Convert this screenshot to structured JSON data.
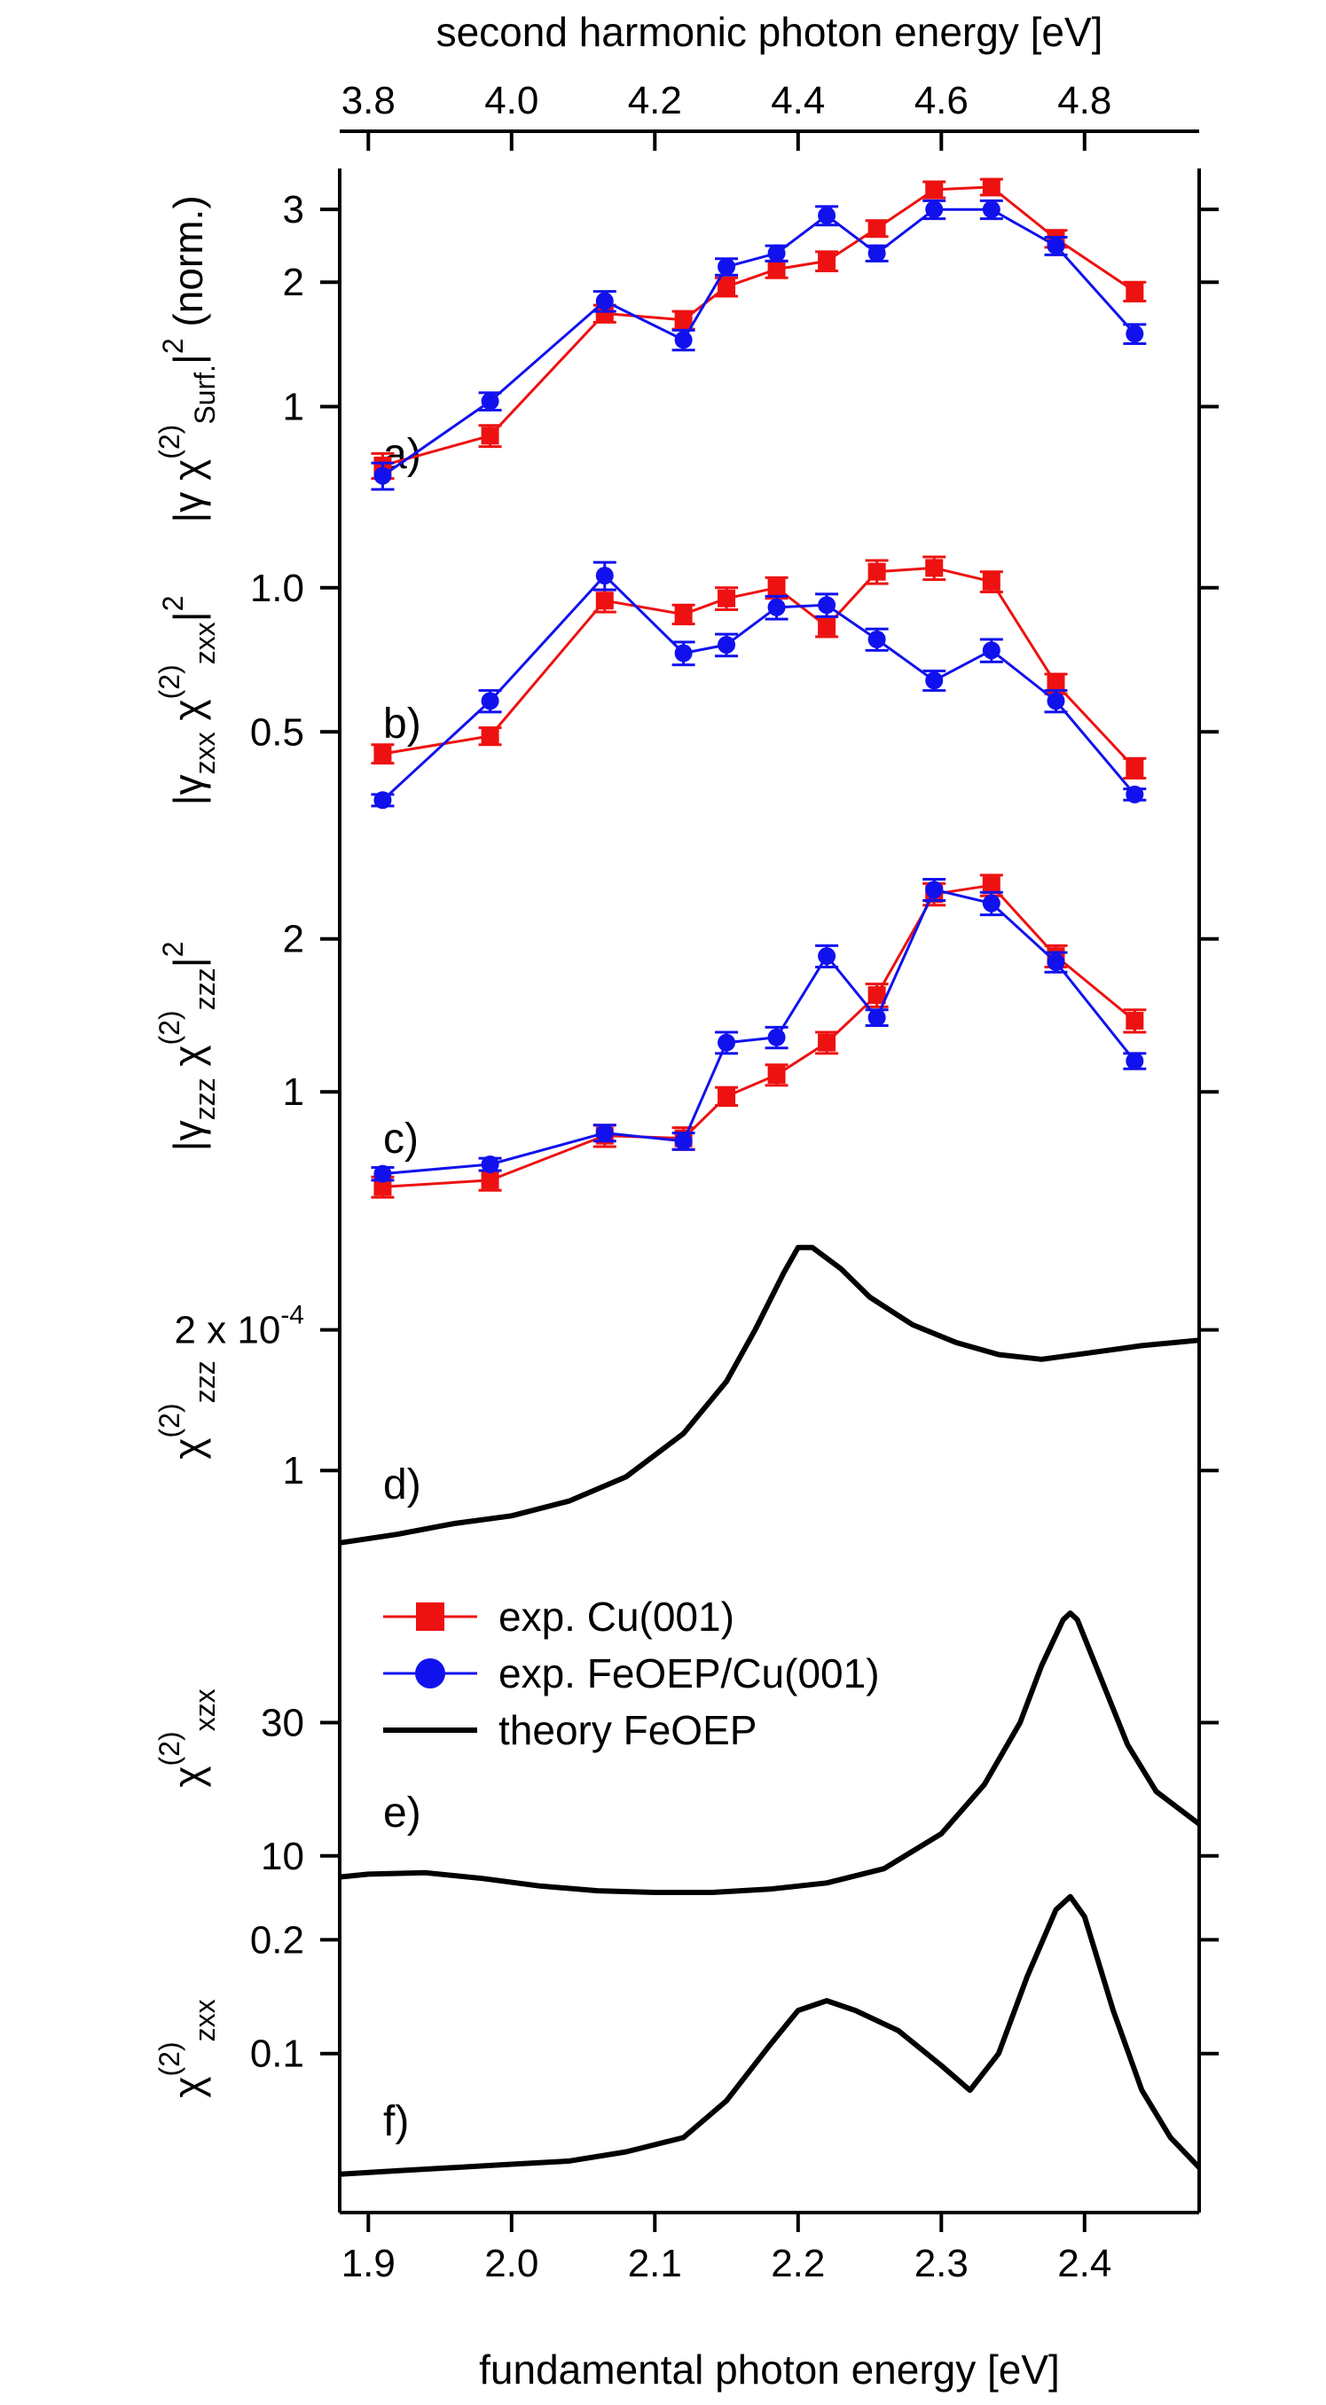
{
  "chart_data": {
    "type": "line",
    "top_axis": {
      "title": "second harmonic photon energy [eV]",
      "ticks": [
        3.8,
        4.0,
        4.2,
        4.4,
        4.6,
        4.8
      ],
      "tick_labels": [
        "3.8",
        "4.0",
        "4.2",
        "4.4",
        "4.6",
        "4.8"
      ]
    },
    "bottom_axis": {
      "title": "fundamental photon energy [eV]",
      "range": [
        1.88,
        2.48
      ],
      "ticks": [
        1.9,
        2.0,
        2.1,
        2.2,
        2.3,
        2.4
      ],
      "tick_labels": [
        "1.9",
        "2.0",
        "2.1",
        "2.2",
        "2.3",
        "2.4"
      ]
    },
    "legend": [
      {
        "label": "exp. Cu(001)",
        "color": "#ee1111",
        "marker": "square"
      },
      {
        "label": "exp. FeOEP/Cu(001)",
        "color": "#1111ee",
        "marker": "circle"
      },
      {
        "label": "theory FeOEP",
        "color": "#000000",
        "marker": "none"
      }
    ],
    "x_exp": [
      1.91,
      1.985,
      2.065,
      2.12,
      2.15,
      2.185,
      2.22,
      2.255,
      2.295,
      2.335,
      2.38,
      2.435
    ],
    "panels": [
      {
        "label": "a)",
        "ylabel": "|γ χ(2)Surf.|² (norm.)",
        "ylabel_parts": {
          "main": "|γ χ",
          "sup": "(2)",
          "sub": "Surf.",
          "tail": "|",
          "sup2": "2",
          "suffix": "(norm.)"
        },
        "yrange": [
          0.45,
          3.5
        ],
        "ticks": [
          1,
          2,
          3
        ],
        "tick_labels": [
          "1",
          "2",
          "3"
        ],
        "series": [
          {
            "name": "exp. Cu(001)",
            "values": [
              0.72,
              0.85,
              1.68,
              1.62,
              1.95,
              2.15,
              2.25,
              2.7,
              3.35,
              3.4,
              2.55,
              1.9
            ],
            "errors": [
              0.05,
              0.05,
              0.08,
              0.08,
              0.1,
              0.1,
              0.12,
              0.12,
              0.15,
              0.15,
              0.12,
              0.1
            ]
          },
          {
            "name": "exp. FeOEP/Cu(001)",
            "values": [
              0.68,
              1.03,
              1.8,
              1.45,
              2.18,
              2.35,
              2.9,
              2.35,
              3.0,
              3.0,
              2.45,
              1.5
            ],
            "errors": [
              0.05,
              0.05,
              0.1,
              0.08,
              0.1,
              0.1,
              0.15,
              0.1,
              0.15,
              0.15,
              0.12,
              0.08
            ]
          }
        ]
      },
      {
        "label": "b)",
        "ylabel": "|γzxx χ(2)zxx|²",
        "ylabel_parts": {
          "main": "|γ",
          "sub": "zxx",
          "mid": " χ",
          "sup": "(2)",
          "sub2": "zxx",
          "tail": "|",
          "sup2": "2"
        },
        "yrange": [
          0.3,
          1.15
        ],
        "ticks": [
          0.5,
          1.0
        ],
        "tick_labels": [
          "0.5",
          "1.0"
        ],
        "series": [
          {
            "name": "exp. Cu(001)",
            "values": [
              0.45,
              0.49,
              0.94,
              0.88,
              0.95,
              1.0,
              0.83,
              1.08,
              1.1,
              1.03,
              0.63,
              0.42
            ],
            "errors": [
              0.02,
              0.02,
              0.05,
              0.04,
              0.05,
              0.05,
              0.04,
              0.06,
              0.06,
              0.05,
              0.03,
              0.02
            ]
          },
          {
            "name": "exp. FeOEP/Cu(001)",
            "values": [
              0.36,
              0.58,
              1.06,
              0.73,
              0.76,
              0.91,
              0.92,
              0.78,
              0.64,
              0.74,
              0.58,
              0.37
            ],
            "errors": [
              0.01,
              0.03,
              0.07,
              0.04,
              0.04,
              0.05,
              0.05,
              0.04,
              0.03,
              0.04,
              0.03,
              0.01
            ]
          }
        ]
      },
      {
        "label": "c)",
        "ylabel": "|γzzz χ(2)zzz|²",
        "ylabel_parts": {
          "main": "|γ",
          "sub": "zzz",
          "mid": " χ",
          "sup": "(2)",
          "sub2": "zzz",
          "tail": "|",
          "sup2": "2"
        },
        "yrange": [
          0.55,
          2.8
        ],
        "ticks": [
          1,
          2
        ],
        "tick_labels": [
          "1",
          "2"
        ],
        "series": [
          {
            "name": "exp. Cu(001)",
            "values": [
              0.65,
              0.67,
              0.82,
              0.81,
              0.98,
              1.08,
              1.25,
              1.55,
              2.45,
              2.55,
              1.85,
              1.38
            ],
            "errors": [
              0.03,
              0.03,
              0.04,
              0.04,
              0.04,
              0.05,
              0.06,
              0.08,
              0.12,
              0.12,
              0.09,
              0.07
            ]
          },
          {
            "name": "exp. FeOEP/Cu(001)",
            "values": [
              0.69,
              0.72,
              0.83,
              0.8,
              1.25,
              1.28,
              1.85,
              1.4,
              2.5,
              2.35,
              1.8,
              1.15
            ],
            "errors": [
              0.02,
              0.02,
              0.03,
              0.03,
              0.06,
              0.06,
              0.09,
              0.05,
              0.12,
              0.12,
              0.08,
              0.04
            ]
          }
        ]
      },
      {
        "label": "d)",
        "ylabel": "χ(2)zzz",
        "ylabel_parts": {
          "main": "χ",
          "sup": "(2)",
          "sub": "zzz"
        },
        "yrange": [
          0.55,
          3.3
        ],
        "ticks": [
          1,
          2
        ],
        "tick_labels": [
          "1",
          "2 x 10"
        ],
        "tick_label_exponent": "-4",
        "series": [
          {
            "name": "theory FeOEP",
            "x": [
              1.88,
              1.92,
              1.96,
              2.0,
              2.04,
              2.08,
              2.12,
              2.15,
              2.17,
              2.19,
              2.2,
              2.21,
              2.23,
              2.25,
              2.28,
              2.31,
              2.34,
              2.37,
              2.4,
              2.44,
              2.48
            ],
            "values": [
              0.7,
              0.73,
              0.77,
              0.8,
              0.86,
              0.97,
              1.2,
              1.55,
              2.0,
              2.65,
              3.0,
              3.0,
              2.7,
              2.35,
              2.05,
              1.88,
              1.77,
              1.73,
              1.78,
              1.85,
              1.9
            ]
          }
        ]
      },
      {
        "label": "e)",
        "ylabel": "χ(2)xzx",
        "ylabel_parts": {
          "main": "χ",
          "sup": "(2)",
          "sub": "xzx"
        },
        "yrange": [
          8.5,
          85
        ],
        "ticks": [
          10,
          30
        ],
        "tick_labels": [
          "10",
          "30"
        ],
        "series": [
          {
            "name": "theory FeOEP",
            "x": [
              1.88,
              1.9,
              1.94,
              1.98,
              2.02,
              2.06,
              2.1,
              2.14,
              2.18,
              2.22,
              2.26,
              2.3,
              2.33,
              2.355,
              2.37,
              2.385,
              2.39,
              2.395,
              2.41,
              2.43,
              2.45,
              2.48
            ],
            "values": [
              8.4,
              8.6,
              8.7,
              8.3,
              7.8,
              7.5,
              7.4,
              7.4,
              7.6,
              8.0,
              9.0,
              12.0,
              18.0,
              30.0,
              48.0,
              70.0,
              74.0,
              70.0,
              45.0,
              25.0,
              17.0,
              13.0
            ]
          }
        ]
      },
      {
        "label": "f)",
        "ylabel": "χ(2)zxx",
        "ylabel_parts": {
          "main": "χ",
          "sup": "(2)",
          "sub": "zxx"
        },
        "yrange": [
          0.038,
          0.28
        ],
        "ticks": [
          0.1,
          0.2
        ],
        "tick_labels": [
          "0.1",
          "0.2"
        ],
        "series": [
          {
            "name": "theory FeOEP",
            "x": [
              1.88,
              1.92,
              1.96,
              2.0,
              2.04,
              2.08,
              2.12,
              2.15,
              2.18,
              2.2,
              2.22,
              2.24,
              2.27,
              2.3,
              2.32,
              2.34,
              2.36,
              2.38,
              2.39,
              2.4,
              2.42,
              2.44,
              2.46,
              2.48
            ],
            "values": [
              0.048,
              0.049,
              0.05,
              0.051,
              0.052,
              0.055,
              0.06,
              0.075,
              0.105,
              0.13,
              0.138,
              0.13,
              0.115,
              0.093,
              0.08,
              0.1,
              0.16,
              0.24,
              0.26,
              0.23,
              0.13,
              0.08,
              0.06,
              0.05
            ]
          }
        ]
      }
    ]
  }
}
